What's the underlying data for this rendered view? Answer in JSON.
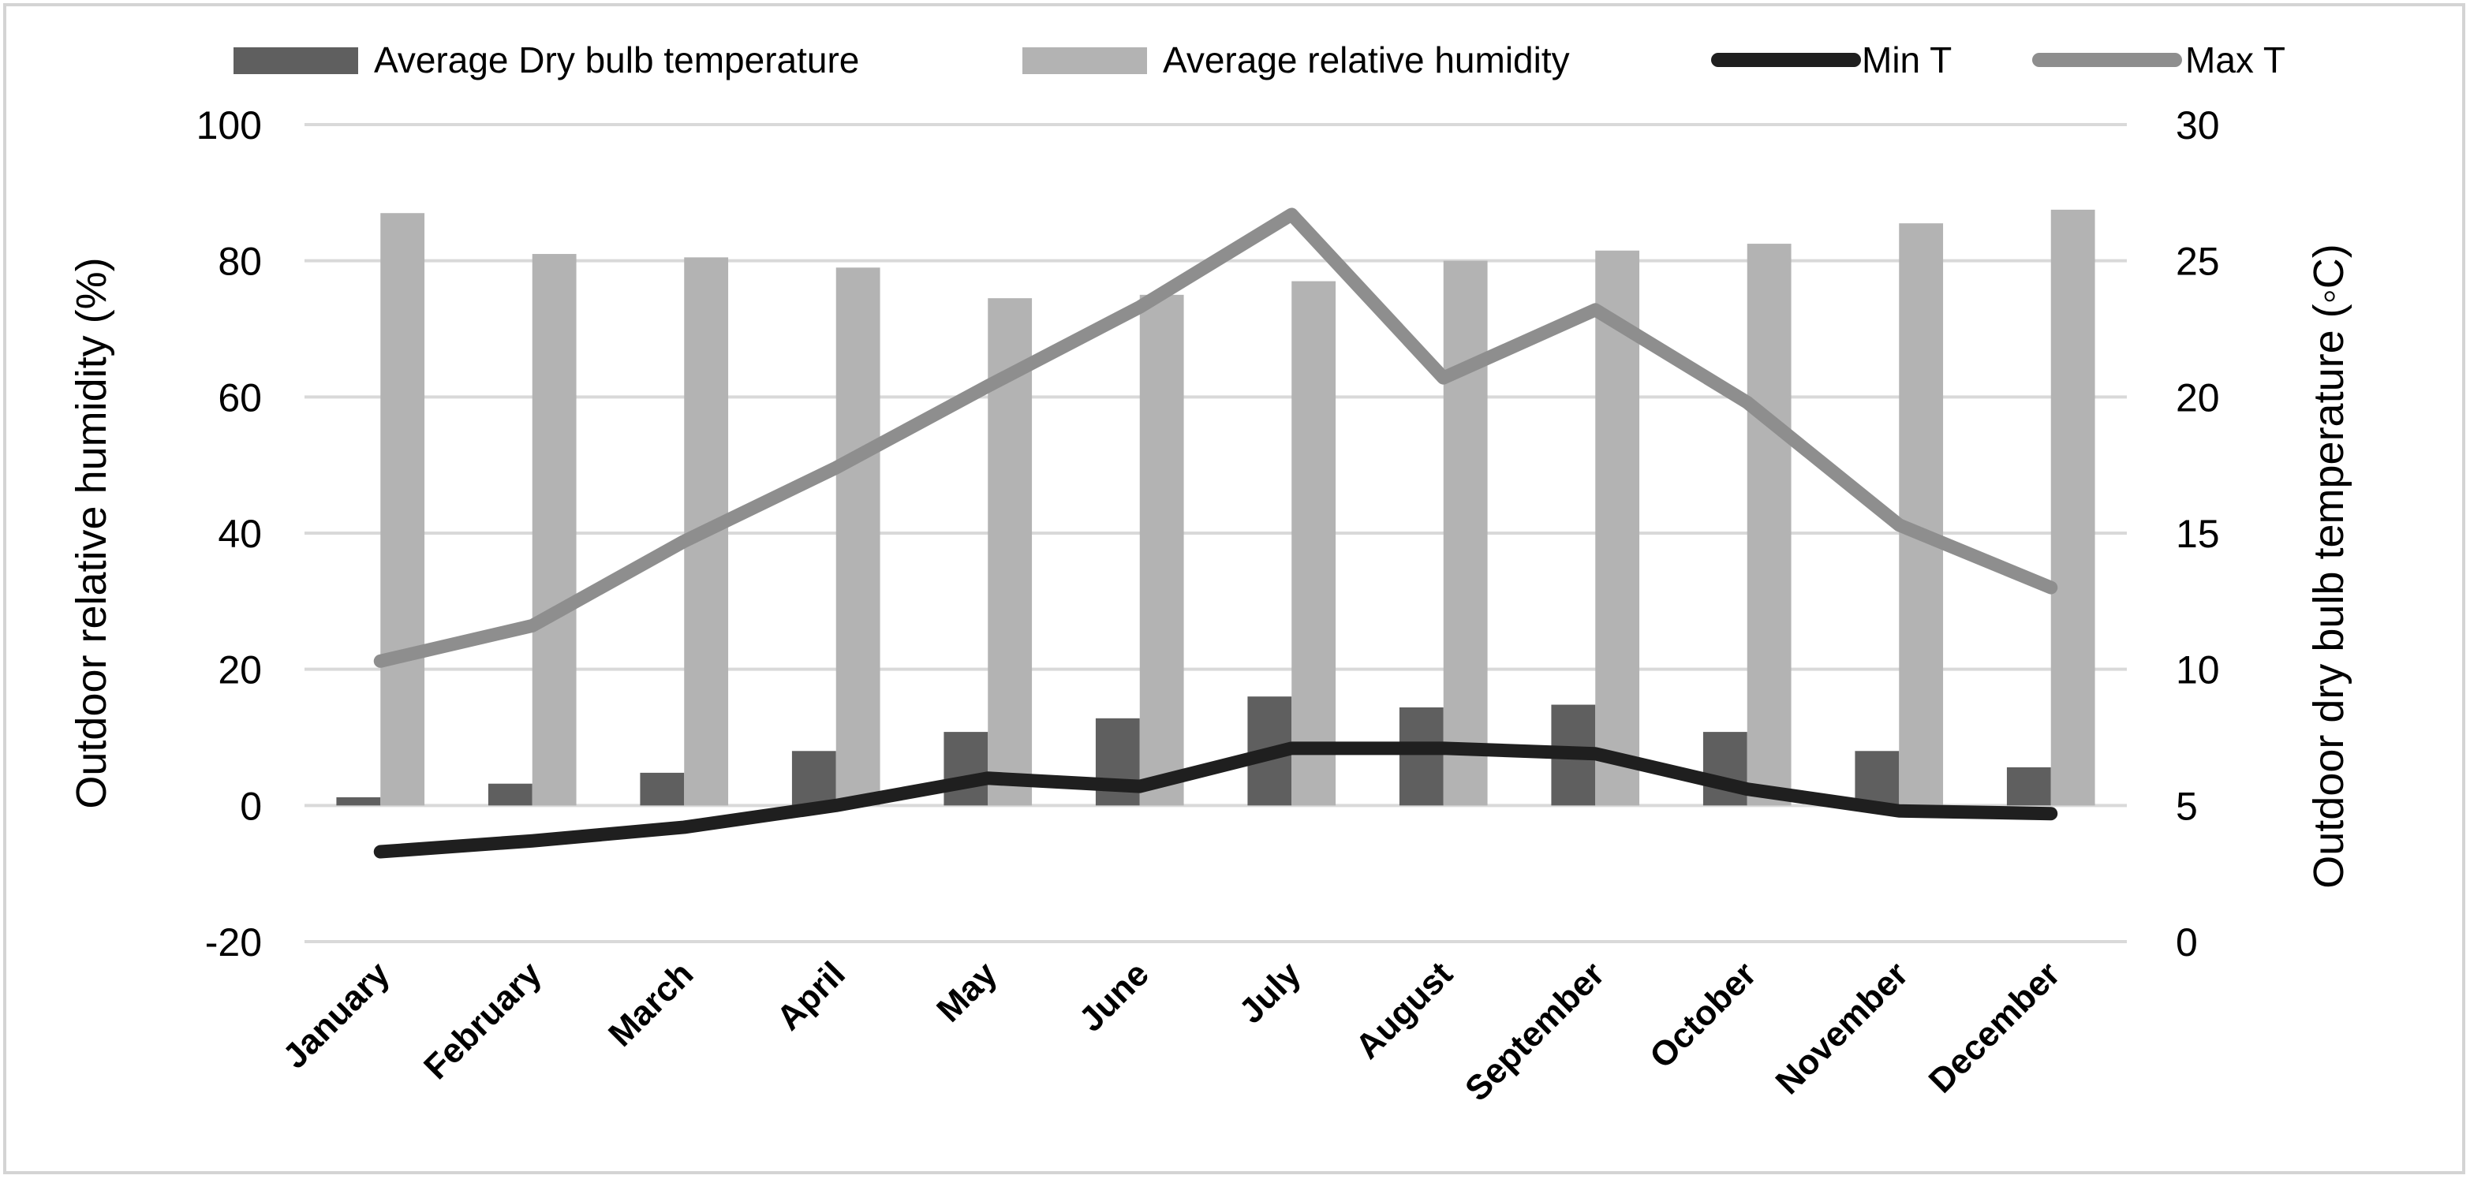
{
  "chart_data": {
    "type": "bar",
    "title": "",
    "categories": [
      "January",
      "February",
      "March",
      "April",
      "May",
      "June",
      "July",
      "August",
      "September",
      "October",
      "November",
      "December"
    ],
    "ylabel": "Outdoor relative humidity (%)",
    "y2label": "Outdoor dry bulb temperature (°C)",
    "y2label_display": "Outdoor dry bulb temperature (◦C)",
    "ylim": [
      -20,
      100
    ],
    "y2lim": [
      0,
      30
    ],
    "yticks": [
      "100",
      "80",
      "60",
      "40",
      "20",
      "0",
      "-20"
    ],
    "y2ticks": [
      "30",
      "25",
      "20",
      "15",
      "10",
      "5",
      "0"
    ],
    "grid": true,
    "legend_position": "top",
    "series": [
      {
        "name": "Average Dry bulb temperature",
        "kind": "bar",
        "axis": "right",
        "color": "#5f5f5f",
        "values": [
          5.3,
          5.8,
          6.2,
          7.0,
          7.7,
          8.2,
          9.0,
          8.6,
          8.7,
          7.7,
          7.0,
          6.4
        ]
      },
      {
        "name": "Average relative humidity",
        "kind": "bar",
        "axis": "left",
        "color": "#b3b3b3",
        "values": [
          87,
          81,
          80.5,
          79,
          74.5,
          75,
          77,
          80,
          81.5,
          82.5,
          85.5,
          87.5
        ]
      },
      {
        "name": "Min T",
        "kind": "line",
        "axis": "right",
        "color": "#1f1f1f",
        "values": [
          3.3,
          3.7,
          4.2,
          5.0,
          6.0,
          5.7,
          7.1,
          7.1,
          6.9,
          5.6,
          4.8,
          4.7
        ]
      },
      {
        "name": "Max T",
        "kind": "line",
        "axis": "right",
        "color": "#8e8e8e",
        "values": [
          10.3,
          11.6,
          14.7,
          17.4,
          20.4,
          23.3,
          26.7,
          20.7,
          23.2,
          19.8,
          15.3,
          13.0
        ]
      }
    ]
  }
}
